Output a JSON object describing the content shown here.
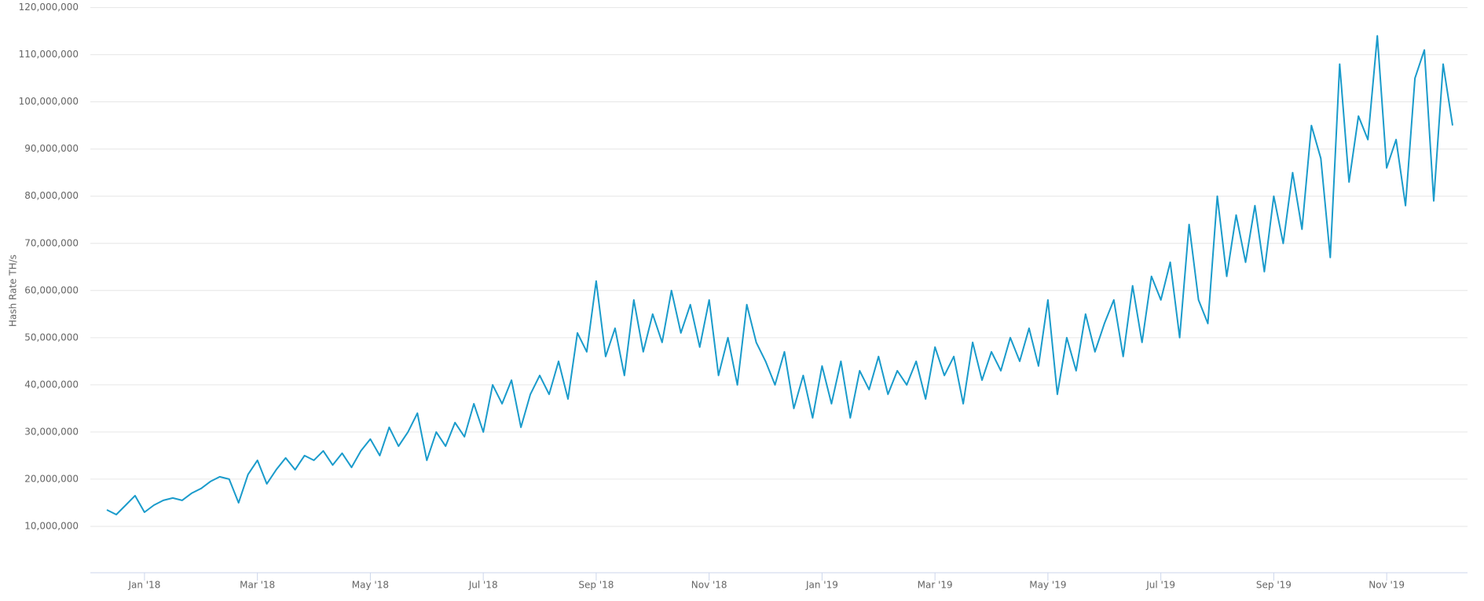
{
  "chart_data": {
    "type": "line",
    "y_label": "Hash Rate TH/s",
    "color": "#1a9bcb",
    "grid": true,
    "ylim": [
      0,
      120000000
    ],
    "yticks": [
      {
        "value": 10000000,
        "label": "10,000,000"
      },
      {
        "value": 20000000,
        "label": "20,000,000"
      },
      {
        "value": 30000000,
        "label": "30,000,000"
      },
      {
        "value": 40000000,
        "label": "40,000,000"
      },
      {
        "value": 50000000,
        "label": "50,000,000"
      },
      {
        "value": 60000000,
        "label": "60,000,000"
      },
      {
        "value": 70000000,
        "label": "70,000,000"
      },
      {
        "value": 80000000,
        "label": "80,000,000"
      },
      {
        "value": 90000000,
        "label": "90,000,000"
      },
      {
        "value": 100000000,
        "label": "100,000,000"
      },
      {
        "value": 110000000,
        "label": "110,000,000"
      },
      {
        "value": 120000000,
        "label": "120,000,000"
      }
    ],
    "categories": [
      null,
      null,
      null,
      null,
      "Jan '18",
      null,
      null,
      null,
      null,
      null,
      null,
      null,
      null,
      null,
      null,
      null,
      "Mar '18",
      null,
      null,
      null,
      null,
      null,
      null,
      null,
      null,
      null,
      null,
      null,
      "May '18",
      null,
      null,
      null,
      null,
      null,
      null,
      null,
      null,
      null,
      null,
      null,
      "Jul '18",
      null,
      null,
      null,
      null,
      null,
      null,
      null,
      null,
      null,
      null,
      null,
      "Sep '18",
      null,
      null,
      null,
      null,
      null,
      null,
      null,
      null,
      null,
      null,
      null,
      "Nov '18",
      null,
      null,
      null,
      null,
      null,
      null,
      null,
      null,
      null,
      null,
      null,
      "Jan '19",
      null,
      null,
      null,
      null,
      null,
      null,
      null,
      null,
      null,
      null,
      null,
      "Mar '19",
      null,
      null,
      null,
      null,
      null,
      null,
      null,
      null,
      null,
      null,
      null,
      "May '19",
      null,
      null,
      null,
      null,
      null,
      null,
      null,
      null,
      null,
      null,
      null,
      "Jul '19",
      null,
      null,
      null,
      null,
      null,
      null,
      null,
      null,
      null,
      null,
      null,
      "Sep '19",
      null,
      null,
      null,
      null,
      null,
      null,
      null,
      null,
      null,
      null,
      null,
      "Nov '19",
      null,
      null,
      null,
      null,
      null,
      null,
      null
    ],
    "values": [
      13500000,
      12500000,
      14500000,
      16500000,
      13000000,
      14500000,
      15500000,
      16000000,
      15500000,
      17000000,
      18000000,
      19500000,
      20500000,
      20000000,
      15000000,
      21000000,
      24000000,
      19000000,
      22000000,
      24500000,
      22000000,
      25000000,
      24000000,
      26000000,
      23000000,
      25500000,
      22500000,
      26000000,
      28500000,
      25000000,
      31000000,
      27000000,
      30000000,
      34000000,
      24000000,
      30000000,
      27000000,
      32000000,
      29000000,
      36000000,
      30000000,
      40000000,
      36000000,
      41000000,
      31000000,
      38000000,
      42000000,
      38000000,
      45000000,
      37000000,
      51000000,
      47000000,
      62000000,
      46000000,
      52000000,
      42000000,
      58000000,
      47000000,
      55000000,
      49000000,
      60000000,
      51000000,
      57000000,
      48000000,
      58000000,
      42000000,
      50000000,
      40000000,
      57000000,
      49000000,
      45000000,
      40000000,
      47000000,
      35000000,
      42000000,
      33000000,
      44000000,
      36000000,
      45000000,
      33000000,
      43000000,
      39000000,
      46000000,
      38000000,
      43000000,
      40000000,
      45000000,
      37000000,
      48000000,
      42000000,
      46000000,
      36000000,
      49000000,
      41000000,
      47000000,
      43000000,
      50000000,
      45000000,
      52000000,
      44000000,
      58000000,
      38000000,
      50000000,
      43000000,
      55000000,
      47000000,
      53000000,
      58000000,
      46000000,
      61000000,
      49000000,
      63000000,
      58000000,
      66000000,
      50000000,
      74000000,
      58000000,
      53000000,
      80000000,
      63000000,
      76000000,
      66000000,
      78000000,
      64000000,
      80000000,
      70000000,
      85000000,
      73000000,
      95000000,
      88000000,
      67000000,
      108000000,
      83000000,
      97000000,
      92000000,
      114000000,
      86000000,
      92000000,
      78000000,
      105000000,
      111000000,
      79000000,
      108000000,
      95000000
    ]
  }
}
